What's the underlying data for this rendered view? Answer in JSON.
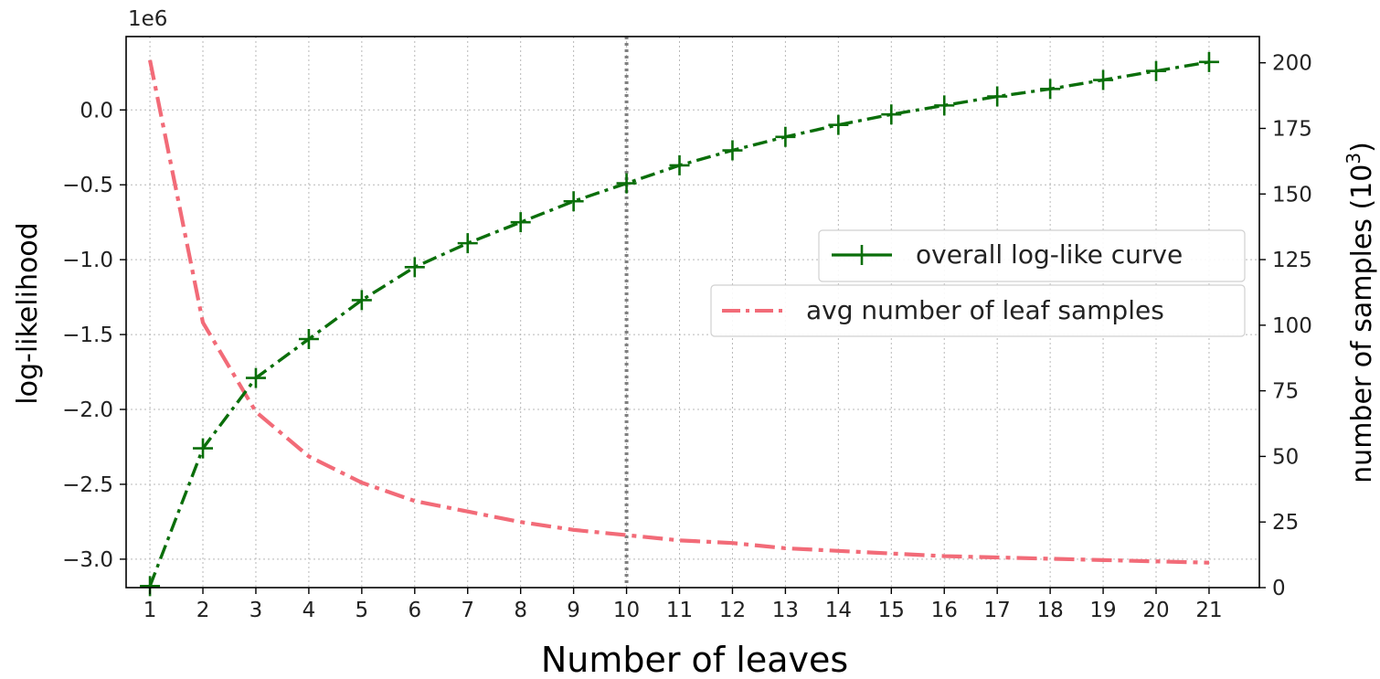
{
  "chart_data": {
    "type": "line",
    "x": [
      1,
      2,
      3,
      4,
      5,
      6,
      7,
      8,
      9,
      10,
      11,
      12,
      13,
      14,
      15,
      16,
      17,
      18,
      19,
      20,
      21
    ],
    "xlabel": "Number of leaves",
    "xlim": [
      0.55,
      21.95
    ],
    "grid": true,
    "vline": {
      "x": 10,
      "style": "dotted",
      "color": "#808080"
    },
    "y_left": {
      "label": "log-likelihood",
      "offset_text": "1e6",
      "lim": [
        -3.19,
        0.49
      ],
      "ticks": [
        -3.0,
        -2.5,
        -2.0,
        -1.5,
        -1.0,
        -0.5,
        0.0
      ],
      "tick_labels": [
        "−3.0",
        "−2.5",
        "−2.0",
        "−1.5",
        "−1.0",
        "−0.5",
        "0.0"
      ]
    },
    "y_right": {
      "label_main": "number of samples (10",
      "label_sup": "3",
      "label_close": ")",
      "lim": [
        0,
        210
      ],
      "ticks": [
        0,
        25,
        50,
        75,
        100,
        125,
        150,
        175,
        200
      ],
      "tick_labels": [
        "0",
        "25",
        "50",
        "75",
        "100",
        "125",
        "150",
        "175",
        "200"
      ]
    },
    "series": [
      {
        "name": "overall log-like curve",
        "axis": "left",
        "color": "#0a6e0a",
        "linestyle": "dashdot",
        "marker": "plus",
        "values": [
          -3.18,
          -2.26,
          -1.79,
          -1.53,
          -1.27,
          -1.05,
          -0.89,
          -0.75,
          -0.61,
          -0.49,
          -0.37,
          -0.27,
          -0.18,
          -0.1,
          -0.03,
          0.03,
          0.09,
          0.14,
          0.2,
          0.26,
          0.32
        ]
      },
      {
        "name": "avg number of leaf samples",
        "axis": "right",
        "color": "#f26b78",
        "linestyle": "dashdot",
        "marker": "none",
        "values": [
          201,
          101,
          67,
          50,
          40,
          33,
          29,
          25,
          22,
          20,
          18,
          17,
          15,
          14,
          13,
          12,
          11.5,
          11,
          10.5,
          10,
          9.5
        ]
      }
    ],
    "legend_location": "center-right"
  }
}
